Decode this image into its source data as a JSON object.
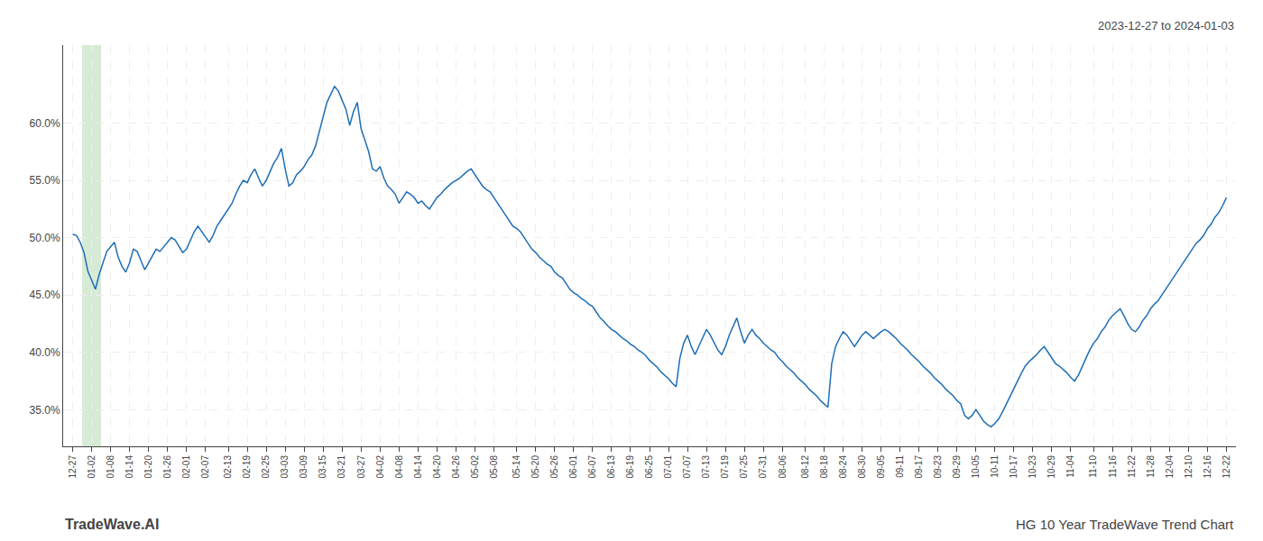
{
  "chart_data": {
    "type": "line",
    "title": "HG 10 Year TradeWave Trend Chart",
    "subtitle": "2023-12-27 to 2024-01-03",
    "annotations": [
      "TradeWave.AI"
    ],
    "color": "#1f6eb5",
    "grid": true,
    "shaded": {
      "start": 0.5,
      "end": 1.5,
      "color": "#d6ead6"
    },
    "ylim": [
      0.318,
      0.668
    ],
    "yticks": [
      {
        "value": 0.35,
        "label": "35.0%"
      },
      {
        "value": 0.4,
        "label": "40.0%"
      },
      {
        "value": 0.45,
        "label": "45.0%"
      },
      {
        "value": 0.5,
        "label": "50.0%"
      },
      {
        "value": 0.55,
        "label": "55.0%"
      },
      {
        "value": 0.6,
        "label": "60.0%"
      }
    ],
    "categories": [
      "12-27",
      null,
      null,
      null,
      null,
      "01-02",
      null,
      null,
      null,
      null,
      "01-08",
      null,
      null,
      null,
      null,
      "01-14",
      null,
      null,
      null,
      null,
      "01-20",
      null,
      null,
      null,
      null,
      "01-26",
      null,
      null,
      null,
      null,
      "02-01",
      null,
      null,
      null,
      null,
      "02-07",
      null,
      null,
      null,
      null,
      null,
      "02-13",
      null,
      null,
      null,
      null,
      "02-19",
      null,
      null,
      null,
      null,
      "02-25",
      null,
      null,
      null,
      null,
      "03-03",
      null,
      null,
      null,
      null,
      "03-09",
      null,
      null,
      null,
      null,
      "03-15",
      null,
      null,
      null,
      null,
      "03-21",
      null,
      null,
      null,
      null,
      "03-27",
      null,
      null,
      null,
      null,
      "04-02",
      null,
      null,
      null,
      null,
      "04-08",
      null,
      null,
      null,
      null,
      "04-14",
      null,
      null,
      null,
      null,
      "04-20",
      null,
      null,
      null,
      null,
      "04-26",
      null,
      null,
      null,
      null,
      "05-02",
      null,
      null,
      null,
      null,
      "05-08",
      null,
      null,
      null,
      null,
      null,
      "05-14",
      null,
      null,
      null,
      null,
      "05-20",
      null,
      null,
      null,
      null,
      "05-26",
      null,
      null,
      null,
      null,
      "06-01",
      null,
      null,
      null,
      null,
      "06-07",
      null,
      null,
      null,
      null,
      "06-13",
      null,
      null,
      null,
      null,
      "06-19",
      null,
      null,
      null,
      null,
      "06-25",
      null,
      null,
      null,
      null,
      "07-01",
      null,
      null,
      null,
      null,
      "07-07",
      null,
      null,
      null,
      null,
      "07-13",
      null,
      null,
      null,
      null,
      "07-19",
      null,
      null,
      null,
      null,
      "07-25",
      null,
      null,
      null,
      null,
      "07-31",
      null,
      null,
      null,
      null,
      "08-06",
      null,
      null,
      null,
      null,
      null,
      "08-12",
      null,
      null,
      null,
      null,
      "08-18",
      null,
      null,
      null,
      null,
      "08-24",
      null,
      null,
      null,
      null,
      "08-30",
      null,
      null,
      null,
      null,
      "09-05",
      null,
      null,
      null,
      null,
      "09-11",
      null,
      null,
      null,
      null,
      "09-17",
      null,
      null,
      null,
      null,
      "09-23",
      null,
      null,
      null,
      null,
      "09-29",
      null,
      null,
      null,
      null,
      "10-05",
      null,
      null,
      null,
      null,
      "10-11",
      null,
      null,
      null,
      null,
      "10-17",
      null,
      null,
      null,
      null,
      "10-23",
      null,
      null,
      null,
      null,
      "10-29",
      null,
      null,
      null,
      null,
      "11-04",
      null,
      null,
      null,
      null,
      null,
      "11-10",
      null,
      null,
      null,
      null,
      "11-16",
      null,
      null,
      null,
      null,
      "11-22",
      null,
      null,
      null,
      null,
      "11-28",
      null,
      null,
      null,
      null,
      "12-04",
      null,
      null,
      null,
      null,
      "12-10",
      null,
      null,
      null,
      null,
      "12-16",
      null,
      null,
      null,
      null,
      "12-22"
    ],
    "values": [
      0.503,
      0.502,
      0.496,
      0.487,
      0.471,
      0.463,
      0.455,
      0.468,
      0.479,
      0.488,
      0.492,
      0.496,
      0.483,
      0.475,
      0.47,
      0.478,
      0.49,
      0.488,
      0.48,
      0.472,
      0.478,
      0.484,
      0.49,
      0.488,
      0.492,
      0.496,
      0.5,
      0.498,
      0.492,
      0.487,
      0.49,
      0.498,
      0.505,
      0.51,
      0.505,
      0.5,
      0.496,
      0.502,
      0.51,
      0.515,
      0.52,
      0.525,
      0.53,
      0.538,
      0.545,
      0.55,
      0.548,
      0.555,
      0.56,
      0.552,
      0.545,
      0.55,
      0.558,
      0.565,
      0.57,
      0.578,
      0.56,
      0.545,
      0.548,
      0.555,
      0.558,
      0.562,
      0.568,
      0.572,
      0.58,
      0.592,
      0.605,
      0.618,
      0.625,
      0.632,
      0.628,
      0.62,
      0.612,
      0.598,
      0.61,
      0.618,
      0.595,
      0.585,
      0.575,
      0.56,
      0.558,
      0.562,
      0.552,
      0.545,
      0.542,
      0.538,
      0.53,
      0.535,
      0.54,
      0.538,
      0.535,
      0.53,
      0.532,
      0.528,
      0.525,
      0.53,
      0.535,
      0.538,
      0.542,
      0.545,
      0.548,
      0.55,
      0.552,
      0.555,
      0.558,
      0.56,
      0.555,
      0.55,
      0.545,
      0.542,
      0.54,
      0.535,
      0.53,
      0.525,
      0.52,
      0.515,
      0.51,
      0.508,
      0.505,
      0.5,
      0.495,
      0.49,
      0.487,
      0.483,
      0.48,
      0.477,
      0.475,
      0.47,
      0.467,
      0.465,
      0.46,
      0.455,
      0.452,
      0.45,
      0.447,
      0.445,
      0.442,
      0.44,
      0.435,
      0.43,
      0.427,
      0.423,
      0.42,
      0.418,
      0.415,
      0.412,
      0.41,
      0.407,
      0.405,
      0.402,
      0.4,
      0.397,
      0.393,
      0.39,
      0.387,
      0.383,
      0.38,
      0.377,
      0.373,
      0.37,
      0.395,
      0.408,
      0.415,
      0.405,
      0.398,
      0.405,
      0.412,
      0.42,
      0.415,
      0.408,
      0.402,
      0.398,
      0.405,
      0.415,
      0.422,
      0.43,
      0.418,
      0.408,
      0.415,
      0.42,
      0.415,
      0.412,
      0.408,
      0.405,
      0.402,
      0.4,
      0.395,
      0.392,
      0.388,
      0.385,
      0.382,
      0.378,
      0.375,
      0.372,
      0.368,
      0.365,
      0.362,
      0.358,
      0.355,
      0.352,
      0.39,
      0.405,
      0.412,
      0.418,
      0.415,
      0.41,
      0.405,
      0.41,
      0.415,
      0.418,
      0.415,
      0.412,
      0.415,
      0.418,
      0.42,
      0.418,
      0.415,
      0.412,
      0.408,
      0.405,
      0.402,
      0.398,
      0.395,
      0.392,
      0.388,
      0.385,
      0.382,
      0.378,
      0.375,
      0.372,
      0.368,
      0.365,
      0.362,
      0.358,
      0.355,
      0.345,
      0.342,
      0.345,
      0.35,
      0.345,
      0.34,
      0.337,
      0.335,
      0.338,
      0.342,
      0.348,
      0.355,
      0.362,
      0.368,
      0.375,
      0.382,
      0.388,
      0.392,
      0.395,
      0.398,
      0.402,
      0.405,
      0.4,
      0.395,
      0.39,
      0.388,
      0.385,
      0.382,
      0.378,
      0.375,
      0.38,
      0.388,
      0.395,
      0.402,
      0.408,
      0.412,
      0.418,
      0.422,
      0.428,
      0.432,
      0.435,
      0.438,
      0.432,
      0.425,
      0.42,
      0.418,
      0.422,
      0.428,
      0.432,
      0.438,
      0.442,
      0.445,
      0.45,
      0.455,
      0.46,
      0.465,
      0.47,
      0.475,
      0.48,
      0.485,
      0.49,
      0.495,
      0.498,
      0.502,
      0.508,
      0.512,
      0.518,
      0.522,
      0.528,
      0.535
    ]
  }
}
